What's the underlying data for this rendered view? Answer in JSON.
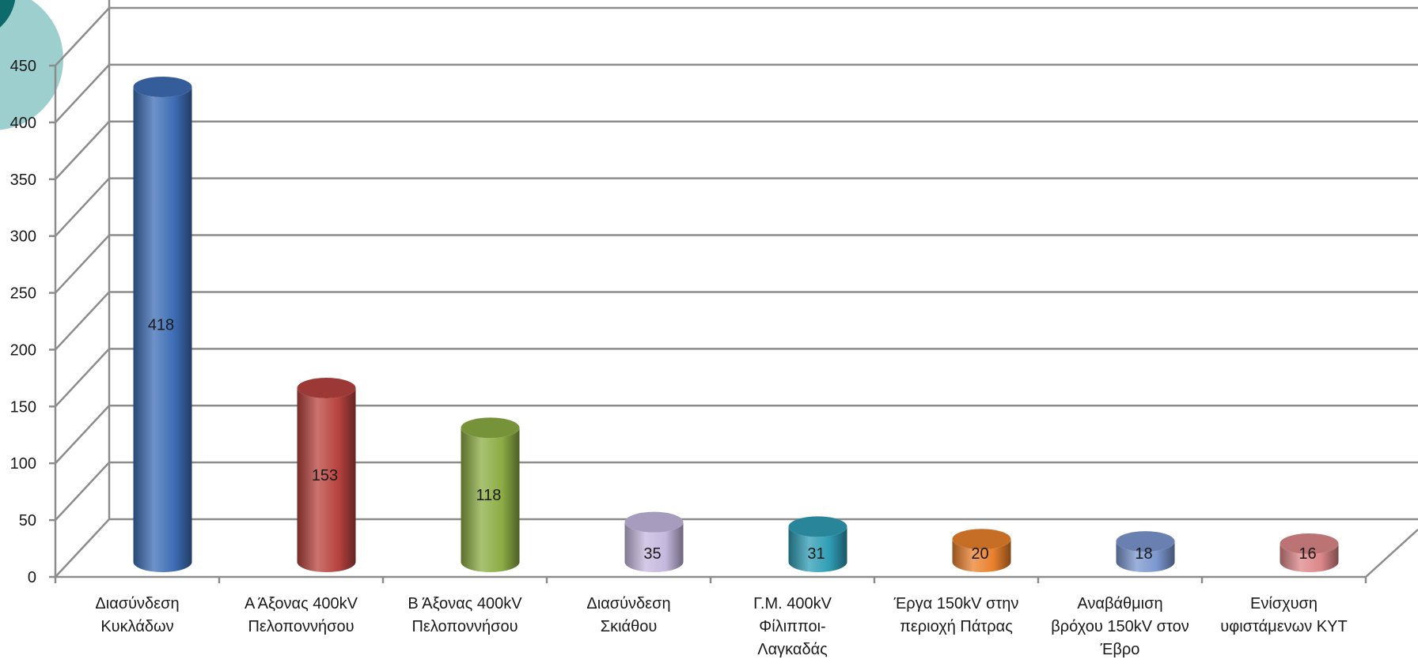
{
  "chart_data": {
    "type": "bar",
    "style": "3d-cylinder",
    "categories": [
      "Διασύνδεση Κυκλάδων",
      "Α Άξονας 400kV Πελοποννήσου",
      "Β Άξονας 400kV Πελοποννήσου",
      "Διασύνδεση Σκιάθου",
      "Γ.Μ. 400kV Φίλιπποι-Λαγκαδάς",
      "Έργα 150kV στην περιοχή Πάτρας",
      "Αναβάθμιση βρόχου 150kV στον Έβρο",
      "Ενίσχυση υφιστάμενων ΚΥΤ"
    ],
    "category_lines": [
      [
        "Διασύνδεση",
        "Κυκλάδων"
      ],
      [
        "Α Άξονας 400kV",
        "Πελοποννήσου"
      ],
      [
        "Β Άξονας 400kV",
        "Πελοποννήσου"
      ],
      [
        "Διασύνδεση",
        "Σκιάθου"
      ],
      [
        "Γ.Μ. 400kV",
        "Φίλιπποι-",
        "Λαγκαδάς"
      ],
      [
        "Έργα 150kV στην",
        "περιοχή Πάτρας"
      ],
      [
        "Αναβάθμιση",
        "βρόχου 150kV στον",
        "Έβρο"
      ],
      [
        "Ενίσχυση",
        "υφιστάμενων ΚΥΤ"
      ]
    ],
    "values": [
      418,
      153,
      118,
      35,
      31,
      20,
      18,
      16
    ],
    "value_labels": [
      "418",
      "153",
      "118",
      "35",
      "31",
      "20",
      "18",
      "16"
    ],
    "colors": [
      "#3d6db5",
      "#b8433f",
      "#8cad44",
      "#c5b8de",
      "#2f9db5",
      "#e9812d",
      "#7b97cf",
      "#dd8789"
    ],
    "title": "",
    "xlabel": "",
    "ylabel": "",
    "ylim": [
      0,
      450
    ],
    "yticks": [
      0,
      50,
      100,
      150,
      200,
      250,
      300,
      350,
      400,
      450
    ],
    "ytick_labels": [
      "0",
      "50",
      "100",
      "150",
      "200",
      "250",
      "300",
      "350",
      "400",
      "450"
    ],
    "grid": true,
    "legend": "none"
  },
  "decoration": {
    "circle_colors": [
      "#9ecfcf",
      "#0d6b6b"
    ]
  }
}
